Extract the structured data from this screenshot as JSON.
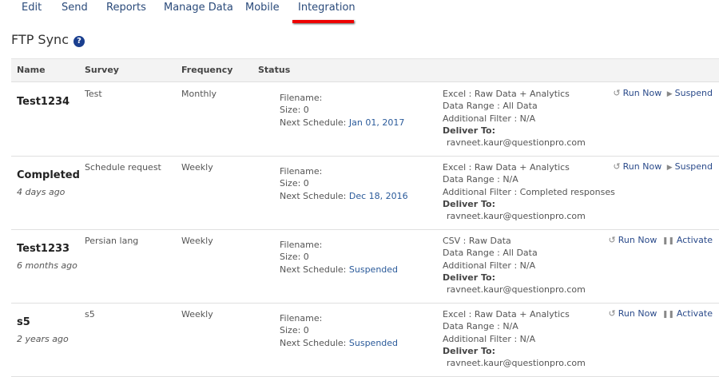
{
  "nav": {
    "items": [
      "Edit",
      "Send",
      "Reports",
      "Manage Data",
      "Mobile",
      "Integration"
    ],
    "active": "Integration"
  },
  "page": {
    "title": "FTP Sync",
    "help_icon": "question-circle-icon"
  },
  "table": {
    "headers": [
      "Name",
      "Survey",
      "Frequency",
      "Status"
    ],
    "rows": [
      {
        "name": "Test1234",
        "ago": "",
        "survey": "Test",
        "frequency": "Monthly",
        "filename": "Filename:",
        "size": "Size: 0",
        "next_label": "Next Schedule:",
        "next_value": "Jan 01, 2017",
        "format": "Excel : Raw Data + Analytics",
        "range": "Data Range : All Data",
        "filter": "Additional Filter : N/A",
        "deliver_label": "Deliver To:",
        "email": "ravneet.kaur@questionpro.com",
        "run": "Run Now",
        "toggle": "Suspend",
        "toggle_icon": "play-icon"
      },
      {
        "name": "Completed",
        "ago": "4 days ago",
        "survey": "Schedule request",
        "frequency": "Weekly",
        "filename": "Filename:",
        "size": "Size: 0",
        "next_label": "Next Schedule:",
        "next_value": "Dec 18, 2016",
        "format": "Excel : Raw Data + Analytics",
        "range": "Data Range : N/A",
        "filter": "Additional Filter : Completed responses",
        "deliver_label": "Deliver To:",
        "email": "ravneet.kaur@questionpro.com",
        "run": "Run Now",
        "toggle": "Suspend",
        "toggle_icon": "play-icon"
      },
      {
        "name": "Test1233",
        "ago": "6 months ago",
        "survey": "Persian lang",
        "frequency": "Weekly",
        "filename": "Filename:",
        "size": "Size: 0",
        "next_label": "Next Schedule:",
        "next_value": "Suspended",
        "format": "CSV : Raw Data",
        "range": "Data Range : All Data",
        "filter": "Additional Filter : N/A",
        "deliver_label": "Deliver To:",
        "email": "ravneet.kaur@questionpro.com",
        "run": "Run Now",
        "toggle": "Activate",
        "toggle_icon": "pause-icon"
      },
      {
        "name": "s5",
        "ago": "2 years ago",
        "survey": "s5",
        "frequency": "Weekly",
        "filename": "Filename:",
        "size": "Size: 0",
        "next_label": "Next Schedule:",
        "next_value": "Suspended",
        "format": "Excel : Raw Data + Analytics",
        "range": "Data Range : N/A",
        "filter": "Additional Filter : N/A",
        "deliver_label": "Deliver To:",
        "email": "ravneet.kaur@questionpro.com",
        "run": "Run Now",
        "toggle": "Activate",
        "toggle_icon": "pause-icon"
      }
    ]
  }
}
